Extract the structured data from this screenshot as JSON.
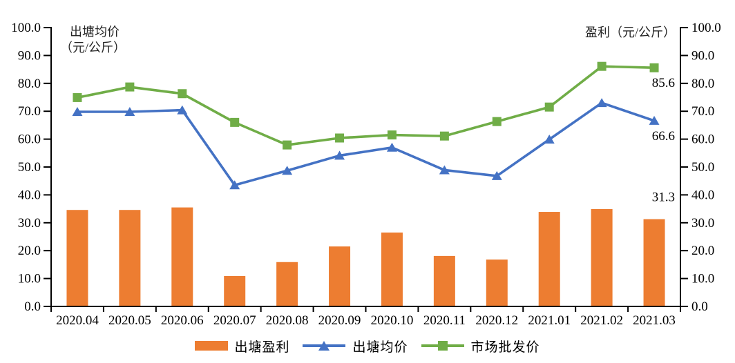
{
  "chart_data": {
    "type": "combo",
    "title": "",
    "categories": [
      "2020.04",
      "2020.05",
      "2020.06",
      "2020.07",
      "2020.08",
      "2020.09",
      "2020.10",
      "2020.11",
      "2020.12",
      "2021.01",
      "2021.02",
      "2021.03"
    ],
    "series": [
      {
        "name": "出塘盈利",
        "type": "bar",
        "marker": "rect",
        "color": "#ED7D31",
        "axis": "right",
        "values": [
          34.6,
          34.6,
          35.5,
          10.9,
          15.9,
          21.5,
          26.5,
          18.1,
          16.8,
          33.9,
          34.9,
          31.3
        ]
      },
      {
        "name": "出塘均价",
        "type": "line",
        "marker": "triangle",
        "color": "#4472C4",
        "axis": "left",
        "values": [
          69.8,
          69.8,
          70.4,
          43.5,
          48.7,
          54.1,
          57.0,
          48.9,
          46.8,
          59.9,
          73.0,
          66.6
        ]
      },
      {
        "name": "市场批发价",
        "type": "line",
        "marker": "square",
        "color": "#70AD47",
        "axis": "left",
        "values": [
          74.9,
          78.7,
          76.3,
          66.0,
          57.9,
          60.4,
          61.5,
          61.1,
          66.3,
          71.5,
          86.1,
          85.6
        ]
      }
    ],
    "left_axis": {
      "title_line1": "出塘均价",
      "title_line2": "（元/公斤）",
      "min": 0,
      "max": 100,
      "step": 10,
      "tick_labels": [
        "0.0",
        "10.0",
        "20.0",
        "30.0",
        "40.0",
        "50.0",
        "60.0",
        "70.0",
        "80.0",
        "90.0",
        "100.0"
      ]
    },
    "right_axis": {
      "title": "盈利（元/公斤）",
      "min": 0,
      "max": 100,
      "step": 10,
      "tick_labels": [
        "0.0",
        "10.0",
        "20.0",
        "30.0",
        "40.0",
        "50.0",
        "60.0",
        "70.0",
        "80.0",
        "90.0",
        "100.0"
      ]
    },
    "annotations": [
      {
        "text": "85.6",
        "series": "市场批发价",
        "category": "2021.03",
        "dy": 22
      },
      {
        "text": "66.6",
        "series": "出塘均价",
        "category": "2021.03",
        "dy": 22
      },
      {
        "text": "31.3",
        "series": "出塘盈利",
        "category": "2021.03",
        "dy": -32
      }
    ],
    "grid": false,
    "legend_position": "bottom",
    "axis_color": "#000000",
    "text_color": "#000000",
    "background_color": "#FFFFFF"
  }
}
